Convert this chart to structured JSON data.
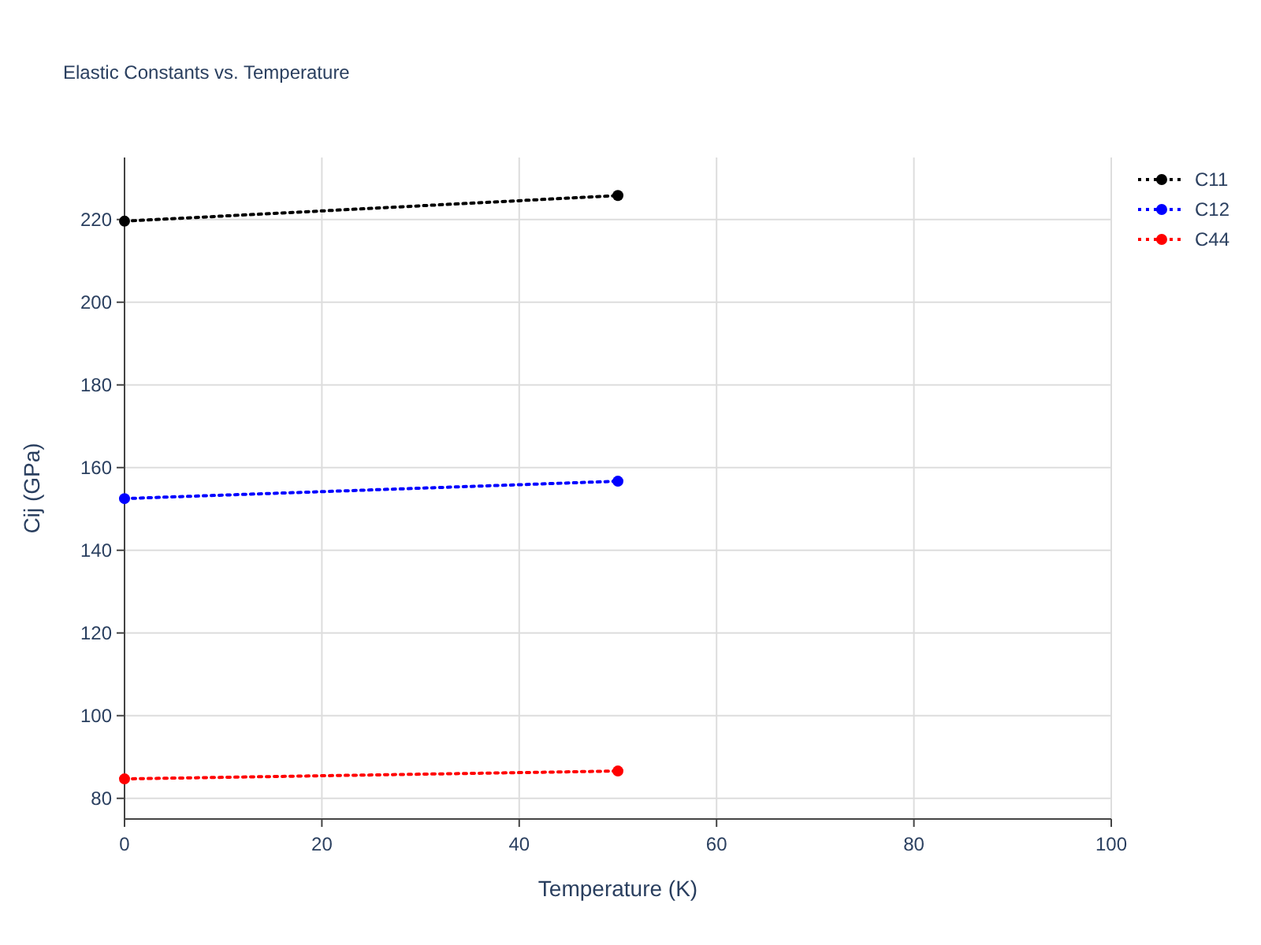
{
  "chart_data": {
    "type": "line",
    "title": "Elastic Constants vs. Temperature",
    "xlabel": "Temperature (K)",
    "ylabel": "Cij (GPa)",
    "x": [
      0,
      50
    ],
    "series": [
      {
        "name": "C11",
        "color": "#000000",
        "values": [
          219.6,
          225.8
        ]
      },
      {
        "name": "C12",
        "color": "#0000ff",
        "values": [
          152.5,
          156.7
        ]
      },
      {
        "name": "C44",
        "color": "#ff0000",
        "values": [
          84.7,
          86.6
        ]
      }
    ],
    "xlim": [
      0,
      100
    ],
    "xticks": [
      0,
      20,
      40,
      60,
      80,
      100
    ],
    "ylim": [
      75,
      235
    ],
    "yticks": [
      80,
      100,
      120,
      140,
      160,
      180,
      200,
      220
    ],
    "grid": true,
    "legend": "top right",
    "marker": "circle",
    "line_style": "dotted"
  }
}
